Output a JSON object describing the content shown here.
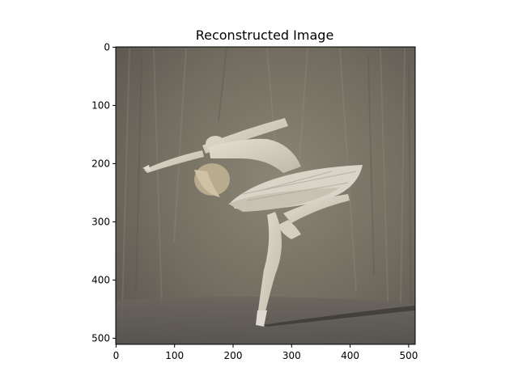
{
  "figure": {
    "title": "Reconstructed Image",
    "image_subject": "ballerina",
    "x_ticks": [
      "0",
      "100",
      "200",
      "300",
      "400",
      "500"
    ],
    "y_ticks": [
      "0",
      "100",
      "200",
      "300",
      "400",
      "500"
    ],
    "extent": [
      0,
      512
    ]
  }
}
